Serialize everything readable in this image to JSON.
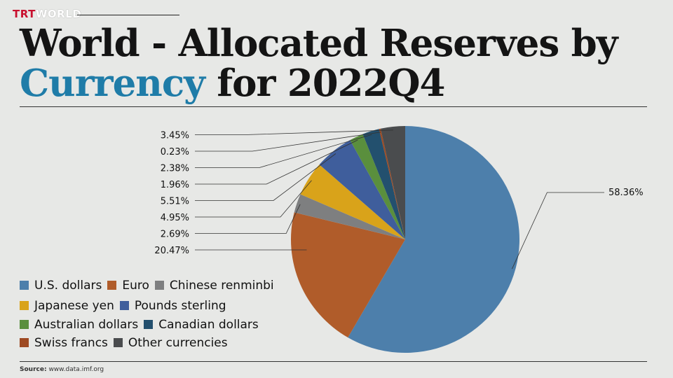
{
  "brand": {
    "part1": "TRT",
    "part2": "WORLD"
  },
  "title": {
    "line1": "World - Allocated Reserves by",
    "highlight": "Currency",
    "rest": "for 2022Q4"
  },
  "colors": {
    "accent": "#1f7ca8",
    "brand_red": "#c8102e"
  },
  "chart_data": {
    "type": "pie",
    "title": "World - Allocated Reserves by Currency for 2022Q4",
    "slices": [
      {
        "name": "U.S. dollars",
        "value": 58.36,
        "label": "58.36%",
        "color": "#4d7fab"
      },
      {
        "name": "Euro",
        "value": 20.47,
        "label": "20.47%",
        "color": "#b05c2a"
      },
      {
        "name": "Chinese renminbi",
        "value": 2.69,
        "label": "2.69%",
        "color": "#7e7f80"
      },
      {
        "name": "Japanese yen",
        "value": 4.95,
        "label": "4.95%",
        "color": "#d9a31a"
      },
      {
        "name": "Pounds sterling",
        "value": 5.51,
        "label": "5.51%",
        "color": "#3f5e9c"
      },
      {
        "name": "Australian dollars",
        "value": 1.96,
        "label": "1.96%",
        "color": "#5a8f3d"
      },
      {
        "name": "Canadian dollars",
        "value": 2.38,
        "label": "2.38%",
        "color": "#23506e"
      },
      {
        "name": "Swiss francs",
        "value": 0.23,
        "label": "0.23%",
        "color": "#9e4a22"
      },
      {
        "name": "Other currencies",
        "value": 3.45,
        "label": "3.45%",
        "color": "#4a4c4e"
      }
    ],
    "legend_position": "bottom-left"
  },
  "legend_rows": [
    [
      "U.S. dollars",
      "Euro",
      "Chinese renminbi"
    ],
    [
      "Japanese yen",
      "Pounds sterling"
    ],
    [
      "Australian dollars",
      "Canadian dollars"
    ],
    [
      "Swiss francs",
      "Other currencies"
    ]
  ],
  "source": {
    "label": "Source:",
    "text": "www.data.imf.org"
  }
}
